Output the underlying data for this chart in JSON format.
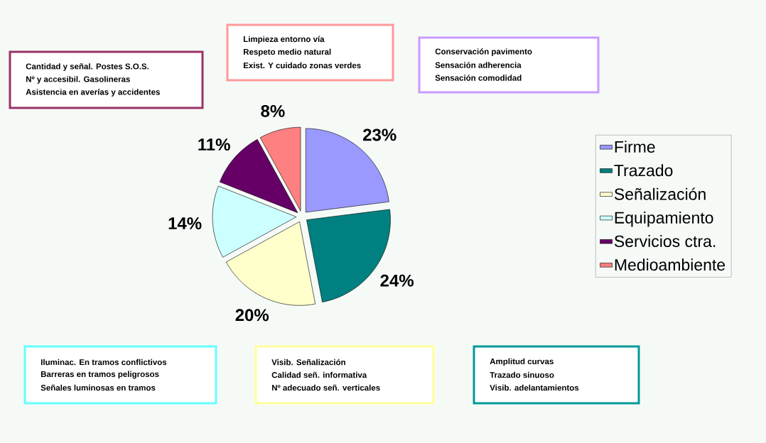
{
  "chart_data": {
    "type": "pie",
    "categories": [
      "Firme",
      "Trazado",
      "Señalización",
      "Equipamiento",
      "Servicios ctra.",
      "Medioambiente"
    ],
    "values": [
      23,
      24,
      20,
      14,
      11,
      8
    ],
    "colors": [
      "#9999ff",
      "#008080",
      "#ffffcc",
      "#ccffff",
      "#660066",
      "#ff8080"
    ],
    "value_labels": [
      "23%",
      "24%",
      "20%",
      "14%",
      "11%",
      "8%"
    ],
    "legend": "right",
    "annotations": [
      "Cantidad  y señal. Postes S.O.S.",
      "Nº y accesibil. Gasolineras",
      "Asistencia en averías y accidentes",
      "Limpieza entorno vía",
      "Respeto medio natural",
      "Exist. Y cuidado zonas verdes",
      "Conservación pavimento",
      "Sensación adherencia",
      "Sensación comodidad",
      "Iluminac. En tramos conflictivos",
      "Barreras en tramos peligrosos",
      "Señales luminosas en tramos",
      "Visib. Señalización",
      "Calidad señ. informativa",
      "Nº adecuado señ. verticales",
      "Amplitud curvas",
      "Trazado sinuoso",
      "Visib. adelantamientos"
    ]
  }
}
